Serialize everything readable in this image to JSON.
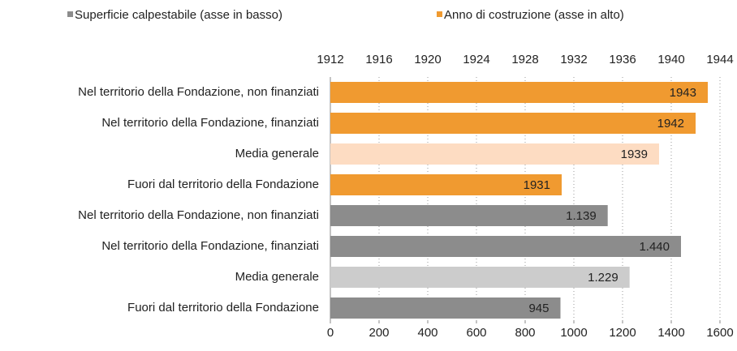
{
  "chart_data": {
    "type": "bar",
    "orientation": "horizontal",
    "categories": [
      "Nel territorio della Fondazione, non finanziati",
      "Nel territorio della Fondazione, finanziati",
      "Media generale",
      "Fuori dal territorio della Fondazione",
      "Nel territorio della Fondazione, non finanziati",
      "Nel territorio della Fondazione, finanziati",
      "Media generale",
      "Fuori dal territorio della Fondazione"
    ],
    "series": [
      {
        "name": "Superficie calpestabile (asse in basso)",
        "color": "#8c8c8c",
        "axis": "x",
        "colors": [
          null,
          null,
          null,
          null,
          "#8c8c8c",
          "#8c8c8c",
          "#cccccc",
          "#8c8c8c"
        ],
        "values": [
          null,
          null,
          null,
          null,
          1139,
          1440,
          1229,
          945
        ],
        "value_labels": [
          null,
          null,
          null,
          null,
          "1.139",
          "1.440",
          "1.229",
          "945"
        ]
      },
      {
        "name": "Anno di costruzione (asse in alto)",
        "color": "#f09a30",
        "axis": "x2",
        "colors": [
          "#f09a30",
          "#f09a30",
          "#fddcc2",
          "#f09a30",
          null,
          null,
          null,
          null
        ],
        "values": [
          1943,
          1942,
          1939,
          1931,
          null,
          null,
          null,
          null
        ]
      }
    ],
    "xlim": [
      0,
      1600
    ],
    "xticks": [
      0,
      200,
      400,
      600,
      800,
      1000,
      1200,
      1400,
      1600
    ],
    "x2lim": [
      1912,
      1944
    ],
    "x2ticks": [
      1912,
      1916,
      1920,
      1924,
      1928,
      1932,
      1936,
      1940,
      1944
    ],
    "grid": true,
    "legend": "top"
  }
}
